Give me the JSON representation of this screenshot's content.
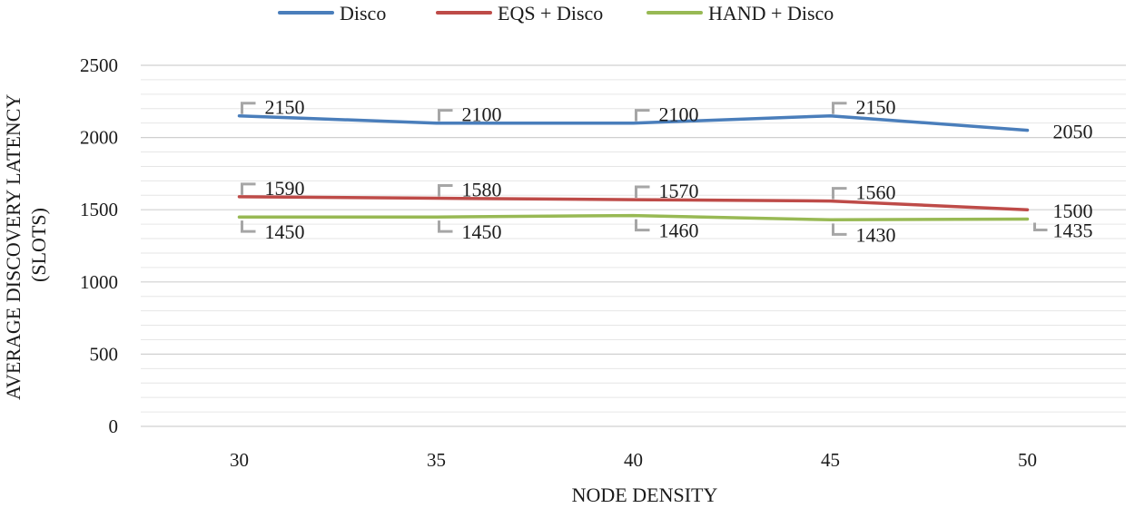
{
  "chart_data": {
    "type": "line",
    "xlabel": "NODE DENSITY",
    "ylabel": [
      "AVERAGE DISCOVERY LATENCY",
      "(SLOTS)"
    ],
    "categories": [
      "30",
      "35",
      "40",
      "45",
      "50"
    ],
    "ylim": [
      0,
      2500
    ],
    "yticks": [
      "0",
      "500",
      "1000",
      "1500",
      "2000",
      "2500"
    ],
    "grid": true,
    "legend_position": "top",
    "series": [
      {
        "name": "Disco",
        "color": "#4a7ebb",
        "values": [
          2150,
          2100,
          2100,
          2150,
          2050
        ],
        "labels": [
          "2150",
          "2100",
          "2100",
          "2150",
          "2050"
        ]
      },
      {
        "name": "EQS + Disco",
        "color": "#be4b48",
        "values": [
          1590,
          1580,
          1570,
          1560,
          1500
        ],
        "labels": [
          "1590",
          "1580",
          "1570",
          "1560",
          "1500"
        ]
      },
      {
        "name": "HAND + Disco",
        "color": "#98b954",
        "values": [
          1450,
          1450,
          1460,
          1430,
          1435
        ],
        "labels": [
          "1450",
          "1450",
          "1460",
          "1430",
          "1435"
        ]
      }
    ]
  }
}
